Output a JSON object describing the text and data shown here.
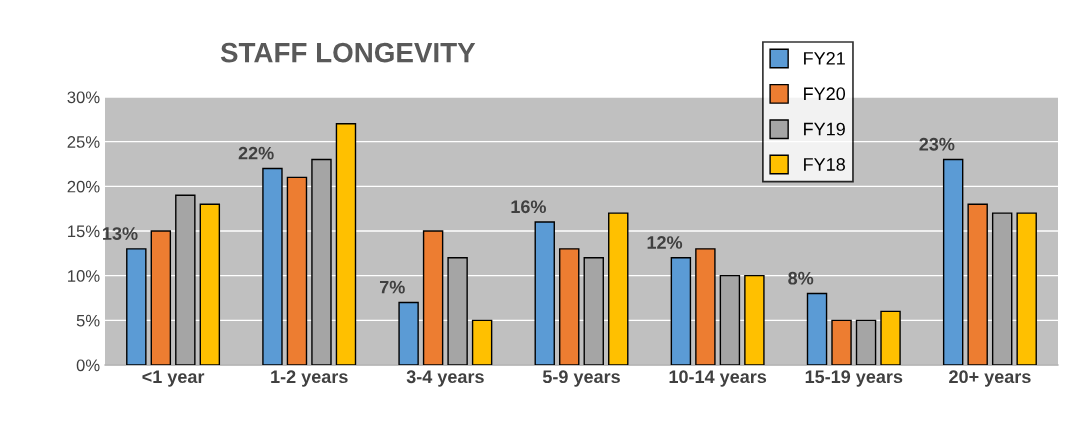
{
  "chart_data": {
    "type": "bar",
    "title": "STAFF LONGEVITY",
    "categories": [
      "<1 year",
      "1-2 years",
      "3-4 years",
      "5-9 years",
      "10-14 years",
      "15-19 years",
      "20+ years"
    ],
    "series": [
      {
        "name": "FY21",
        "color": "#5b9bd5",
        "values": [
          13,
          22,
          7,
          16,
          12,
          8,
          23
        ],
        "value_labels": [
          "13%",
          "22%",
          "7%",
          "16%",
          "12%",
          "8%",
          "23%"
        ]
      },
      {
        "name": "FY20",
        "color": "#ed7d31",
        "values": [
          15,
          21,
          15,
          13,
          13,
          5,
          18
        ]
      },
      {
        "name": "FY19",
        "color": "#a5a5a5",
        "values": [
          19,
          23,
          12,
          12,
          10,
          5,
          17
        ]
      },
      {
        "name": "FY18",
        "color": "#ffc000",
        "values": [
          18,
          27,
          5,
          17,
          10,
          6,
          17
        ]
      }
    ],
    "ylim": [
      0,
      30
    ],
    "yticks": [
      {
        "value": 0,
        "label": "0%"
      },
      {
        "value": 5,
        "label": "5%"
      },
      {
        "value": 10,
        "label": "10%"
      },
      {
        "value": 15,
        "label": "15%"
      },
      {
        "value": 20,
        "label": "20%"
      },
      {
        "value": 25,
        "label": "25%"
      },
      {
        "value": 30,
        "label": "30%"
      }
    ],
    "grid": "y",
    "legend": "top right"
  }
}
